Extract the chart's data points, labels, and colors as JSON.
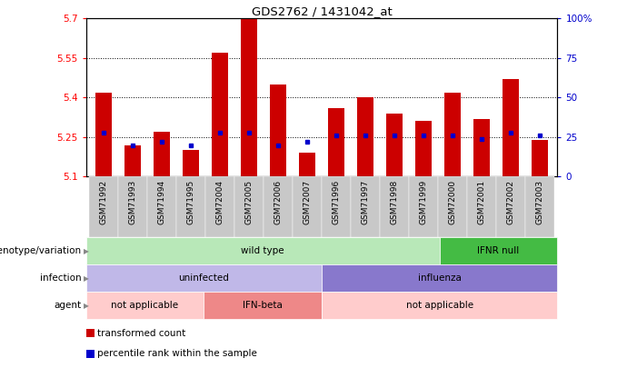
{
  "title": "GDS2762 / 1431042_at",
  "samples": [
    "GSM71992",
    "GSM71993",
    "GSM71994",
    "GSM71995",
    "GSM72004",
    "GSM72005",
    "GSM72006",
    "GSM72007",
    "GSM71996",
    "GSM71997",
    "GSM71998",
    "GSM71999",
    "GSM72000",
    "GSM72001",
    "GSM72002",
    "GSM72003"
  ],
  "transformed_count": [
    5.42,
    5.22,
    5.27,
    5.2,
    5.57,
    5.7,
    5.45,
    5.19,
    5.36,
    5.4,
    5.34,
    5.31,
    5.42,
    5.32,
    5.47,
    5.24
  ],
  "percentile_rank": [
    28,
    20,
    22,
    20,
    28,
    28,
    20,
    22,
    26,
    26,
    26,
    26,
    26,
    24,
    28,
    26
  ],
  "y_min": 5.1,
  "y_max": 5.7,
  "bar_color": "#cc0000",
  "blue_color": "#0000cc",
  "annotation_rows": [
    {
      "label": "genotype/variation",
      "segments": [
        {
          "text": "wild type",
          "start": 0,
          "end": 12,
          "color": "#b8e8b8"
        },
        {
          "text": "IFNR null",
          "start": 12,
          "end": 16,
          "color": "#44bb44"
        }
      ]
    },
    {
      "label": "infection",
      "segments": [
        {
          "text": "uninfected",
          "start": 0,
          "end": 8,
          "color": "#c0b8e8"
        },
        {
          "text": "influenza",
          "start": 8,
          "end": 16,
          "color": "#8878cc"
        }
      ]
    },
    {
      "label": "agent",
      "segments": [
        {
          "text": "not applicable",
          "start": 0,
          "end": 4,
          "color": "#ffcccc"
        },
        {
          "text": "IFN-beta",
          "start": 4,
          "end": 8,
          "color": "#ee8888"
        },
        {
          "text": "not applicable",
          "start": 8,
          "end": 16,
          "color": "#ffcccc"
        }
      ]
    }
  ],
  "legend_items": [
    {
      "color": "#cc0000",
      "label": "transformed count"
    },
    {
      "color": "#0000cc",
      "label": "percentile rank within the sample"
    }
  ],
  "yticks": [
    5.1,
    5.25,
    5.4,
    5.55,
    5.7
  ],
  "ytick_labels": [
    "5.1",
    "5.25",
    "5.4",
    "5.55",
    "5.7"
  ],
  "grid_yticks": [
    5.25,
    5.4,
    5.55
  ],
  "right_yticks": [
    0,
    25,
    50,
    75,
    100
  ],
  "right_ytick_labels": [
    "0",
    "25",
    "50",
    "75",
    "100%"
  ]
}
